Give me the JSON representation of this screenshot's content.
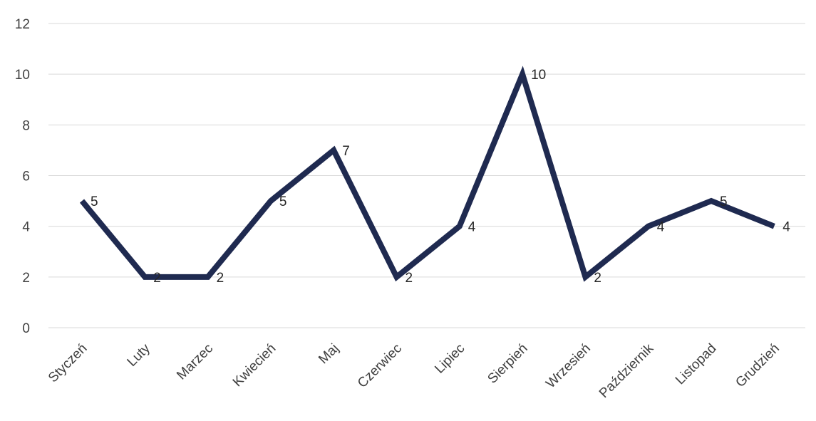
{
  "chart_data": {
    "type": "line",
    "title": "",
    "xlabel": "",
    "ylabel": "",
    "categories": [
      "Styczeń",
      "Luty",
      "Marzec",
      "Kwiecień",
      "Maj",
      "Czerwiec",
      "Lipiec",
      "Sierpień",
      "Wrzesień",
      "Październik",
      "Listopad",
      "Grudzień"
    ],
    "series": [
      {
        "values": [
          5,
          2,
          2,
          5,
          7,
          2,
          4,
          10,
          2,
          4,
          5,
          4
        ]
      }
    ],
    "ylim": [
      0,
      12
    ],
    "yticks": [
      0,
      2,
      4,
      6,
      8,
      10,
      12
    ],
    "grid": true,
    "data_labels": true,
    "legend": "none",
    "colors": {
      "line": "#1f2a50",
      "grid": "#d9d9d9",
      "text": "#404040"
    }
  }
}
